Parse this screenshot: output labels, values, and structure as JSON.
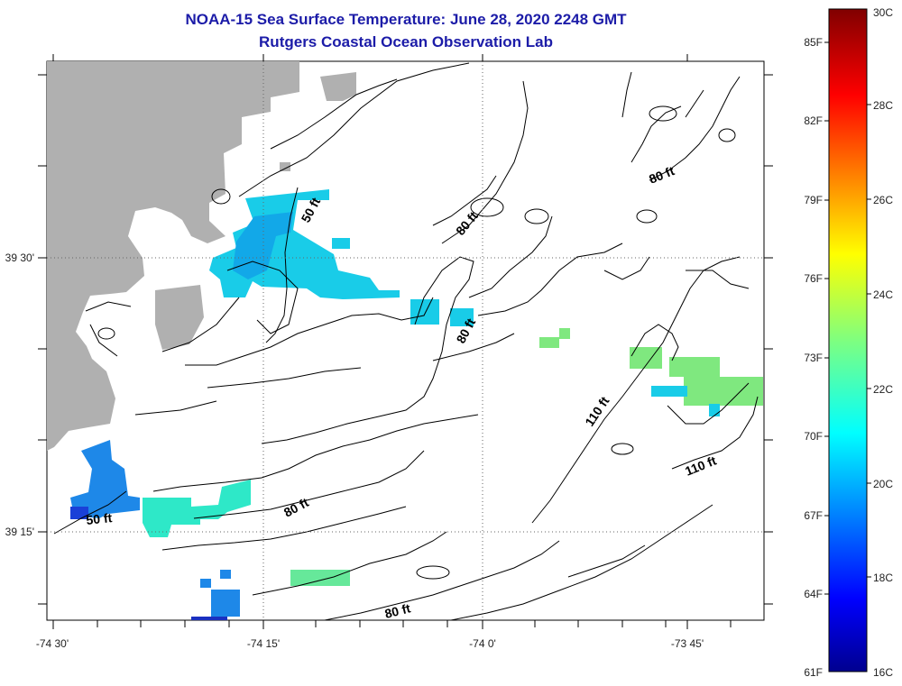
{
  "title": "NOAA-15 Sea Surface Temperature:  June 28, 2020 2248 GMT",
  "subtitle": "Rutgers Coastal Ocean Observation Lab",
  "x_ticks": [
    "-74 30'",
    "-74 15'",
    "-74 0'",
    "-73 45'"
  ],
  "y_ticks": [
    "39 30'",
    "39 15'"
  ],
  "colorbar": {
    "celsius": [
      "30C",
      "28C",
      "26C",
      "24C",
      "22C",
      "20C",
      "18C",
      "16C"
    ],
    "fahrenheit": [
      "85F",
      "82F",
      "79F",
      "76F",
      "73F",
      "70F",
      "67F",
      "64F",
      "61F"
    ]
  },
  "contour_labels": [
    "50 ft",
    "50 ft",
    "80 ft",
    "80 ft",
    "80 ft",
    "80 ft",
    "80 ft",
    "110 ft",
    "110 ft"
  ],
  "colors": {
    "land": "#b0b0b0",
    "title": "#1c1ca8"
  }
}
